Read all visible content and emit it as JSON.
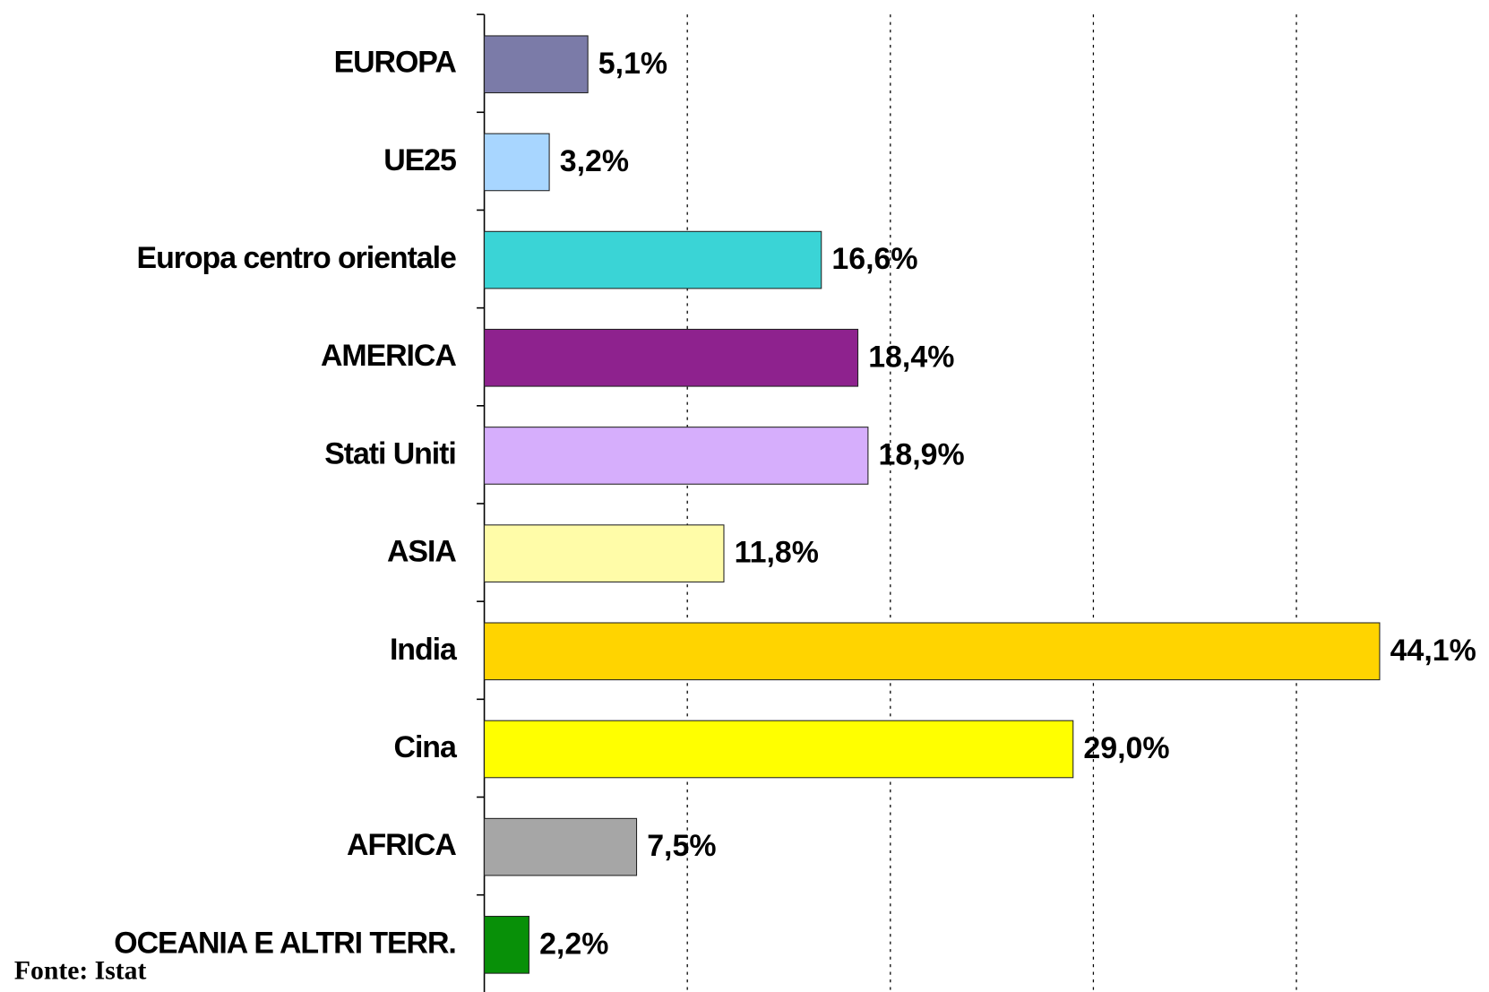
{
  "chart_data": {
    "type": "hbar",
    "source": "Fonte: Istat",
    "categories": [
      "EUROPA",
      "UE25",
      "Europa centro orientale",
      "AMERICA",
      "Stati Uniti",
      "ASIA",
      "India",
      "Cina",
      "AFRICA",
      "OCEANIA E ALTRI TERR."
    ],
    "values": [
      5.1,
      3.2,
      16.6,
      18.4,
      18.9,
      11.8,
      44.1,
      29.0,
      7.5,
      2.2
    ],
    "value_labels": [
      "5,1%",
      "3,2%",
      "16,6%",
      "18,4%",
      "18,9%",
      "11,8%",
      "44,1%",
      "29,0%",
      "7,5%",
      "2,2%"
    ],
    "colors": [
      "#7b7ba8",
      "#a8d6ff",
      "#3ad4d6",
      "#8e228e",
      "#d6aefc",
      "#fffca8",
      "#ffd400",
      "#ffff00",
      "#a6a6a6",
      "#089008"
    ],
    "xlim": [
      0,
      50
    ],
    "xticks": [
      10,
      20,
      30,
      40
    ],
    "grid": true
  }
}
